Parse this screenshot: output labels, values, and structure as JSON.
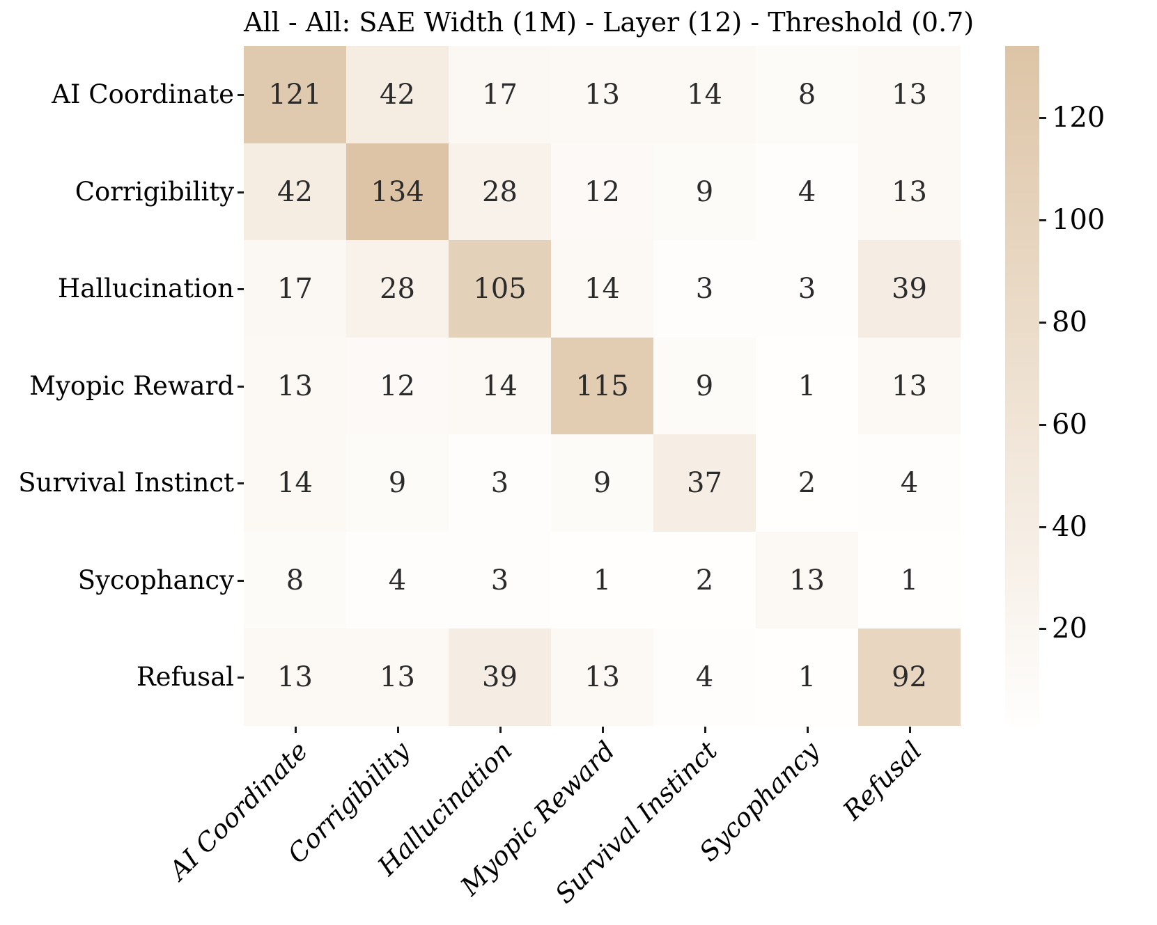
{
  "chart_data": {
    "type": "heatmap",
    "title": "All - All: SAE Width (1M) - Layer (12) - Threshold (0.7)",
    "x_categories": [
      "AI Coordinate",
      "Corrigibility",
      "Hallucination",
      "Myopic Reward",
      "Survival Instinct",
      "Sycophancy",
      "Refusal"
    ],
    "y_categories": [
      "AI Coordinate",
      "Corrigibility",
      "Hallucination",
      "Myopic Reward",
      "Survival Instinct",
      "Sycophancy",
      "Refusal"
    ],
    "matrix": [
      [
        121,
        42,
        17,
        13,
        14,
        8,
        13
      ],
      [
        42,
        134,
        28,
        12,
        9,
        4,
        13
      ],
      [
        17,
        28,
        105,
        14,
        3,
        3,
        39
      ],
      [
        13,
        12,
        14,
        115,
        9,
        1,
        13
      ],
      [
        14,
        9,
        3,
        9,
        37,
        2,
        4
      ],
      [
        8,
        4,
        3,
        1,
        2,
        13,
        1
      ],
      [
        13,
        13,
        39,
        13,
        4,
        1,
        92
      ]
    ],
    "vmin": 1,
    "vmax": 134,
    "colorbar_ticks": [
      120,
      100,
      80,
      60,
      40,
      20
    ],
    "colorbar_position": "right",
    "grid": false,
    "annotations_shown": true,
    "colors": {
      "min": "#fffefd",
      "max": "#ddc4a6",
      "annotation": "#2b2b2b",
      "axis_text": "#000000",
      "background": "#ffffff"
    }
  }
}
